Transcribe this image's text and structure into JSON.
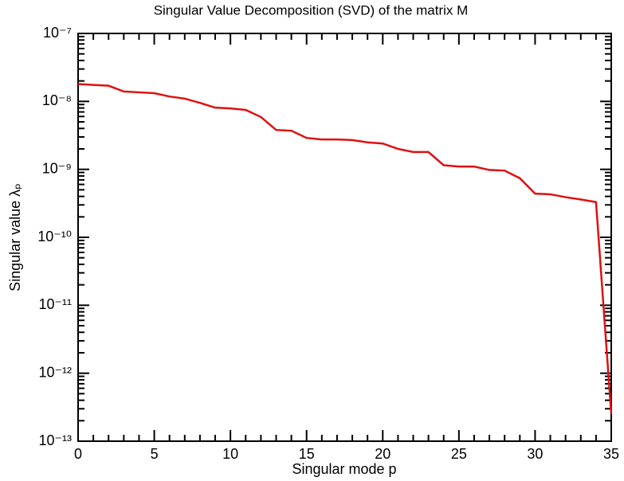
{
  "chart_data": {
    "type": "line",
    "title": "Singular Value Decomposition (SVD) of the matrix M",
    "xlabel": "Singular mode p",
    "ylabel": "Singular value λₚ",
    "x": [
      0,
      1,
      2,
      3,
      4,
      5,
      6,
      7,
      8,
      9,
      10,
      11,
      12,
      13,
      14,
      15,
      16,
      17,
      18,
      19,
      20,
      21,
      22,
      23,
      24,
      25,
      26,
      27,
      28,
      29,
      30,
      31,
      32,
      33,
      34,
      35
    ],
    "series": [
      {
        "name": "Singular value",
        "color": "#e01010",
        "values": [
          1.8e-08,
          1.75e-08,
          1.7e-08,
          1.4e-08,
          1.36e-08,
          1.32e-08,
          1.18e-08,
          1.1e-08,
          9.5e-09,
          8.1e-09,
          7.9e-09,
          7.5e-09,
          5.9e-09,
          3.8e-09,
          3.7e-09,
          2.9e-09,
          2.75e-09,
          2.75e-09,
          2.7e-09,
          2.5e-09,
          2.4e-09,
          2e-09,
          1.8e-09,
          1.8e-09,
          1.15e-09,
          1.1e-09,
          1.1e-09,
          9.8e-10,
          9.6e-10,
          7.4e-10,
          4.4e-10,
          4.3e-10,
          3.9e-10,
          3.6e-10,
          3.3e-10,
          2.5e-13
        ]
      }
    ],
    "xlim": [
      0,
      35
    ],
    "xticks": [
      0,
      5,
      10,
      15,
      20,
      25,
      30,
      35
    ],
    "ylim": [
      1e-13,
      1e-07
    ],
    "yticks": [
      {
        "value": 1e-13,
        "label": "10⁻¹³"
      },
      {
        "value": 1e-12,
        "label": "10⁻¹²"
      },
      {
        "value": 1e-11,
        "label": "10⁻¹¹"
      },
      {
        "value": 1e-10,
        "label": "10⁻¹⁰"
      },
      {
        "value": 1e-09,
        "label": "10⁻⁹"
      },
      {
        "value": 1e-08,
        "label": "10⁻⁸"
      },
      {
        "value": 1e-07,
        "label": "10⁻⁷"
      }
    ],
    "ylog": true,
    "minor_ticks": true,
    "grid": false
  }
}
